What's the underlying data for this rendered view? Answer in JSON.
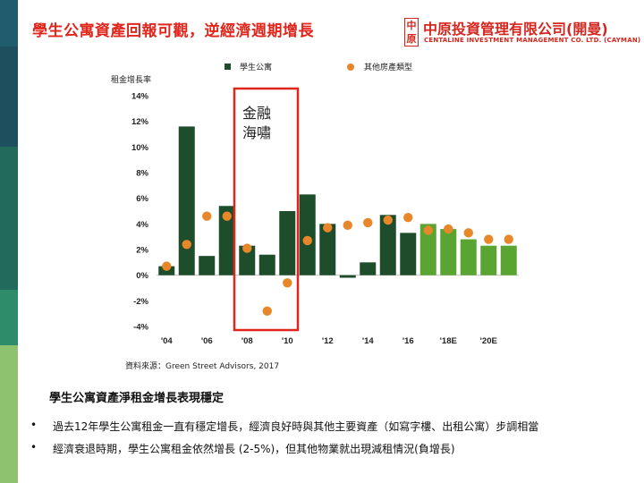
{
  "slide": {
    "title": "學生公寓資產回報可觀，逆經濟週期增長",
    "logo": {
      "mark": "中原",
      "name": "中原投資管理有限公司(開曼)",
      "subname": "CENTALINE INVESTMENT MANAGEMENT CO. LTD. (CAYMAN)"
    },
    "source": "資料來源：Green Street Advisors, 2017",
    "subtitle": "學生公寓資產淨租金增長表現穩定",
    "bullets": [
      "過去12年學生公寓租金一直有穩定增長，經濟良好時與其他主要資產（如寫字樓、出租公寓）步調相當",
      "經濟衰退時期，學生公寓租金依然增長 (2-5%)，但其他物業就出現減租情況(負增長)"
    ],
    "bullet_symbol": "•",
    "colors": {
      "title": "#e0261c",
      "sidebar": [
        "#1f5d6e",
        "#1e4f5f",
        "#216a5c",
        "#2e8c6a",
        "#8fc26e"
      ]
    }
  },
  "chart_data": {
    "type": "bar",
    "ylabel": "租金增長率",
    "ylim": [
      -4,
      14
    ],
    "yticks": [
      "14%",
      "12%",
      "10%",
      "8%",
      "6%",
      "4%",
      "2%",
      "0%",
      "-2%",
      "-4%"
    ],
    "ytick_values": [
      14,
      12,
      10,
      8,
      6,
      4,
      2,
      0,
      -2,
      -4
    ],
    "categories": [
      "2004",
      "2005",
      "2006",
      "2007",
      "2008",
      "2009",
      "2010",
      "2011",
      "2012",
      "2013",
      "2014",
      "2015",
      "2016",
      "2017",
      "2018E",
      "2019E",
      "2020E",
      "2021E"
    ],
    "xtick_labels": [
      "'04",
      "",
      "'06",
      "",
      "'08",
      "",
      "'10",
      "",
      "'12",
      "",
      "'14",
      "",
      "'16",
      "",
      "'18E",
      "",
      "'20E",
      ""
    ],
    "forecast_from_index": 13,
    "series": [
      {
        "name": "學生公寓",
        "kind": "bar",
        "color": "#1e4d2b",
        "forecast_color": "#5aa531",
        "values": [
          0.7,
          11.6,
          1.5,
          5.4,
          2.3,
          1.6,
          5.0,
          6.3,
          4.0,
          -0.2,
          1.0,
          4.7,
          3.3,
          4.0,
          3.6,
          2.8,
          2.3,
          2.3
        ]
      },
      {
        "name": "其他房產類型",
        "kind": "point",
        "color": "#e8862a",
        "values": [
          0.7,
          2.4,
          4.6,
          4.6,
          2.1,
          -2.8,
          -0.6,
          2.7,
          3.7,
          3.9,
          4.1,
          4.3,
          4.5,
          3.5,
          3.6,
          3.3,
          2.8,
          2.8
        ]
      }
    ],
    "annotation": {
      "text": [
        "金融",
        "海嘯"
      ],
      "color": "#e0261c"
    },
    "grid": false,
    "legend_position": "top"
  }
}
